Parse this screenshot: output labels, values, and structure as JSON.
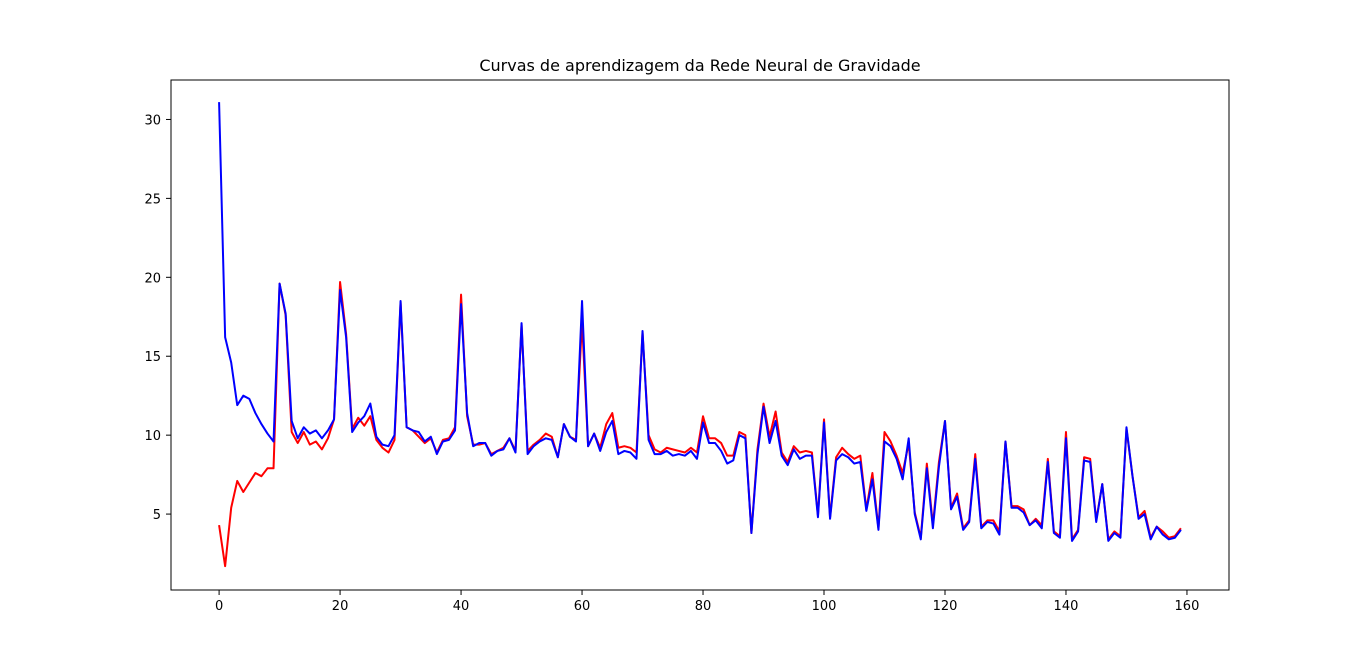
{
  "chart_data": {
    "type": "line",
    "title": "Curvas de aprendizagem da Rede Neural de Gravidade",
    "xlabel": "",
    "ylabel": "",
    "xlim": [
      -7.95,
      166.95
    ],
    "ylim": [
      0.19,
      32.5
    ],
    "xticks": [
      0,
      20,
      40,
      60,
      80,
      100,
      120,
      140,
      160
    ],
    "yticks": [
      5,
      10,
      15,
      20,
      25,
      30
    ],
    "grid": false,
    "legend": "none",
    "x_start": 0,
    "series": [
      {
        "color": "#ff0000",
        "values": [
          4.3,
          1.7,
          5.4,
          7.1,
          6.4,
          7.0,
          7.6,
          7.4,
          7.9,
          7.9,
          19.6,
          17.6,
          10.2,
          9.5,
          10.2,
          9.4,
          9.6,
          9.1,
          9.8,
          11.0,
          19.7,
          16.4,
          10.4,
          11.1,
          10.6,
          11.2,
          9.7,
          9.2,
          8.9,
          9.7,
          18.4,
          10.5,
          10.3,
          9.9,
          9.5,
          9.8,
          8.9,
          9.7,
          9.8,
          10.5,
          18.9,
          11.2,
          9.4,
          9.4,
          9.5,
          8.8,
          9.0,
          9.2,
          9.8,
          9.0,
          17.0,
          9.0,
          9.4,
          9.7,
          10.1,
          9.9,
          8.6,
          10.7,
          9.9,
          9.7,
          17.2,
          9.3,
          10.1,
          9.2,
          10.7,
          11.4,
          9.2,
          9.3,
          9.2,
          8.9,
          16.5,
          10.0,
          9.1,
          8.9,
          9.2,
          9.1,
          9.0,
          8.9,
          9.2,
          8.9,
          11.2,
          9.8,
          9.8,
          9.5,
          8.7,
          8.7,
          10.2,
          10.0,
          3.8,
          9.1,
          12.0,
          9.9,
          11.5,
          8.9,
          8.3,
          9.3,
          8.9,
          9.0,
          8.9,
          4.9,
          11.0,
          4.8,
          8.6,
          9.2,
          8.8,
          8.5,
          8.7,
          5.3,
          7.6,
          4.1,
          10.2,
          9.6,
          8.7,
          7.6,
          9.5,
          5.1,
          3.5,
          8.2,
          4.3,
          8.3,
          10.9,
          5.4,
          6.3,
          4.1,
          4.6,
          8.8,
          4.2,
          4.6,
          4.6,
          3.9,
          9.6,
          5.5,
          5.5,
          5.3,
          4.3,
          4.7,
          4.3,
          8.5,
          3.9,
          3.6,
          10.2,
          3.4,
          4.0,
          8.6,
          8.5,
          4.6,
          6.9,
          3.4,
          3.9,
          3.6,
          10.4,
          7.4,
          4.8,
          5.2,
          3.5,
          4.2,
          3.9,
          3.5,
          3.6,
          4.1
        ]
      },
      {
        "color": "#0000ff",
        "values": [
          31.1,
          16.2,
          14.6,
          11.9,
          12.5,
          12.3,
          11.4,
          10.7,
          10.1,
          9.6,
          19.6,
          17.7,
          10.9,
          9.8,
          10.5,
          10.1,
          10.3,
          9.8,
          10.3,
          11.0,
          19.2,
          16.2,
          10.2,
          10.8,
          11.2,
          12.0,
          9.9,
          9.4,
          9.3,
          10.0,
          18.5,
          10.5,
          10.3,
          10.2,
          9.6,
          9.9,
          8.8,
          9.6,
          9.7,
          10.3,
          18.3,
          11.4,
          9.3,
          9.5,
          9.5,
          8.7,
          9.0,
          9.1,
          9.8,
          8.9,
          17.1,
          8.8,
          9.3,
          9.6,
          9.8,
          9.7,
          8.6,
          10.7,
          9.9,
          9.6,
          18.5,
          9.3,
          10.1,
          9.0,
          10.2,
          10.9,
          8.8,
          9.0,
          8.9,
          8.5,
          16.6,
          9.7,
          8.8,
          8.8,
          9.0,
          8.7,
          8.8,
          8.7,
          9.0,
          8.5,
          10.8,
          9.5,
          9.5,
          9.0,
          8.2,
          8.4,
          10.0,
          9.8,
          3.8,
          8.8,
          11.8,
          9.5,
          10.9,
          8.7,
          8.1,
          9.1,
          8.5,
          8.7,
          8.7,
          4.8,
          10.8,
          4.7,
          8.4,
          8.8,
          8.6,
          8.2,
          8.3,
          5.2,
          7.2,
          4.0,
          9.6,
          9.3,
          8.5,
          7.2,
          9.8,
          5.0,
          3.4,
          7.9,
          4.1,
          8.0,
          10.9,
          5.3,
          6.1,
          4.0,
          4.5,
          8.5,
          4.1,
          4.5,
          4.4,
          3.7,
          9.6,
          5.4,
          5.4,
          5.1,
          4.3,
          4.6,
          4.1,
          8.3,
          3.8,
          3.5,
          9.8,
          3.3,
          3.9,
          8.4,
          8.3,
          4.5,
          6.9,
          3.3,
          3.8,
          3.5,
          10.5,
          7.4,
          4.7,
          5.0,
          3.4,
          4.2,
          3.7,
          3.4,
          3.5,
          4.0
        ]
      }
    ]
  }
}
